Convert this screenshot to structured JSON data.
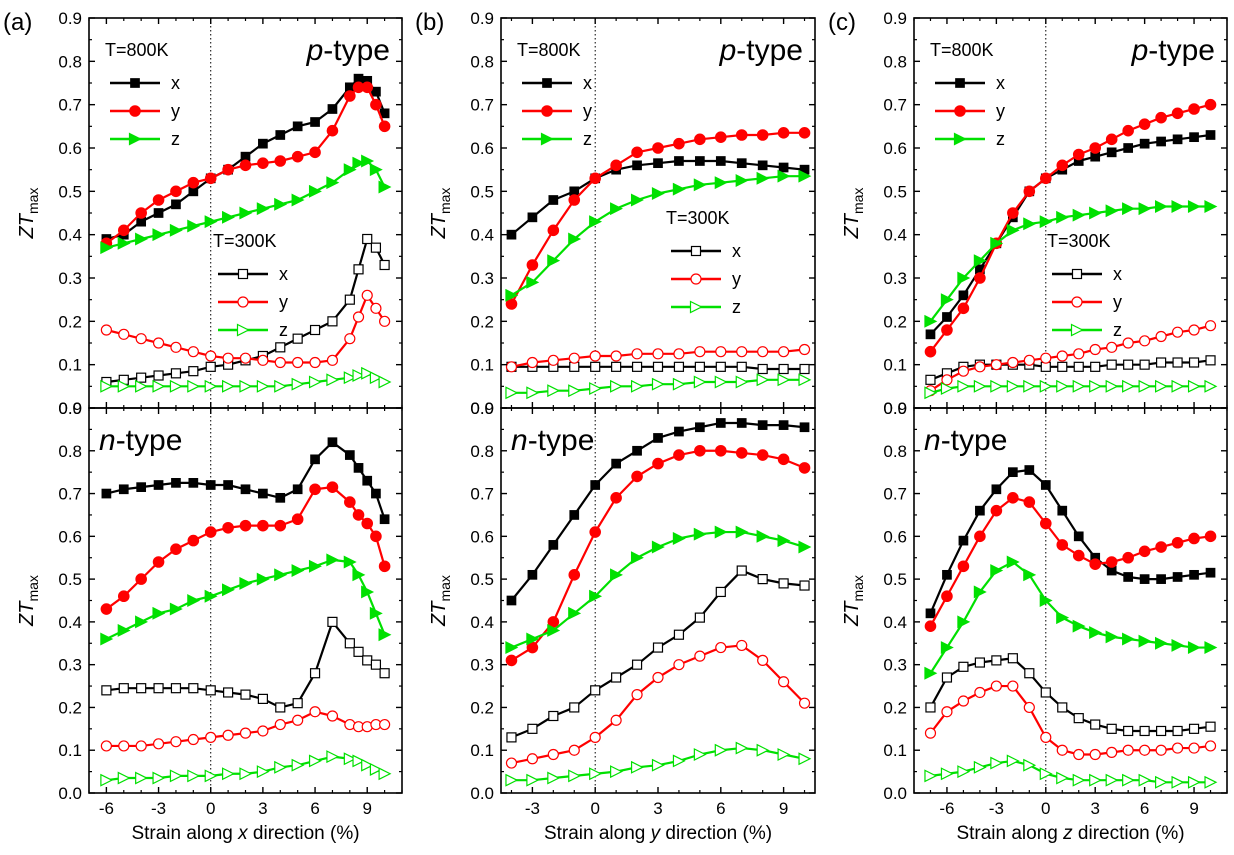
{
  "colors": {
    "x": "#000000",
    "y": "#ff0000",
    "z": "#00e000"
  },
  "common": {
    "ylabel_italic": "ZT",
    "ylabel_sub": "max",
    "ylim": [
      0,
      0.9
    ],
    "yticks": [
      "0.0",
      "0.1",
      "0.2",
      "0.3",
      "0.4",
      "0.5",
      "0.6",
      "0.7",
      "0.8",
      "0.9"
    ],
    "p_type_italic": "p",
    "n_type_italic": "n",
    "type_suffix": "-type",
    "temp_800": "T=800K",
    "temp_300": "T=300K",
    "series_names": [
      "x",
      "y",
      "z"
    ],
    "legend_800_placement": "top-left",
    "legend_300_placement": "middle-right"
  },
  "chart_data": [
    {
      "panel": "(a)",
      "type": "line",
      "xlabel_pre": "Strain along ",
      "xlabel_it": "x",
      "xlabel_post": " direction (%)",
      "xlim": [
        -7,
        11
      ],
      "xticks": [
        -6,
        -3,
        0,
        3,
        6,
        9
      ],
      "x": [
        -6,
        -5,
        -4,
        -3,
        -2,
        -1,
        0,
        1,
        2,
        3,
        4,
        5,
        6,
        7,
        8,
        8.5,
        9,
        9.5,
        10
      ],
      "p_type": {
        "T800": [
          {
            "name": "x",
            "values": [
              0.39,
              0.4,
              0.43,
              0.45,
              0.47,
              0.5,
              0.53,
              0.55,
              0.58,
              0.61,
              0.63,
              0.65,
              0.66,
              0.69,
              0.74,
              0.76,
              0.755,
              0.73,
              0.68
            ]
          },
          {
            "name": "y",
            "values": [
              0.38,
              0.41,
              0.45,
              0.48,
              0.5,
              0.52,
              0.53,
              0.55,
              0.56,
              0.565,
              0.57,
              0.58,
              0.59,
              0.64,
              0.72,
              0.74,
              0.74,
              0.7,
              0.65
            ]
          },
          {
            "name": "z",
            "values": [
              0.37,
              0.38,
              0.39,
              0.4,
              0.41,
              0.42,
              0.43,
              0.44,
              0.45,
              0.46,
              0.47,
              0.48,
              0.5,
              0.52,
              0.55,
              0.565,
              0.57,
              0.55,
              0.51
            ]
          }
        ],
        "T300": [
          {
            "name": "x",
            "values": [
              0.06,
              0.065,
              0.07,
              0.075,
              0.08,
              0.085,
              0.095,
              0.1,
              0.11,
              0.12,
              0.14,
              0.16,
              0.18,
              0.2,
              0.25,
              0.32,
              0.39,
              0.37,
              0.33
            ]
          },
          {
            "name": "y",
            "values": [
              0.18,
              0.17,
              0.16,
              0.15,
              0.14,
              0.13,
              0.12,
              0.115,
              0.115,
              0.11,
              0.105,
              0.105,
              0.105,
              0.11,
              0.16,
              0.21,
              0.26,
              0.23,
              0.2
            ]
          },
          {
            "name": "z",
            "values": [
              0.05,
              0.05,
              0.05,
              0.05,
              0.05,
              0.05,
              0.05,
              0.05,
              0.05,
              0.05,
              0.05,
              0.055,
              0.06,
              0.065,
              0.07,
              0.075,
              0.08,
              0.07,
              0.06
            ]
          }
        ]
      },
      "n_type": [
        {
          "name": "x",
          "values": [
            0.7,
            0.71,
            0.715,
            0.72,
            0.725,
            0.725,
            0.72,
            0.72,
            0.71,
            0.7,
            0.69,
            0.71,
            0.78,
            0.82,
            0.79,
            0.76,
            0.73,
            0.7,
            0.64
          ]
        },
        {
          "name": "y",
          "values": [
            0.43,
            0.46,
            0.5,
            0.54,
            0.57,
            0.59,
            0.61,
            0.62,
            0.625,
            0.625,
            0.625,
            0.64,
            0.71,
            0.715,
            0.68,
            0.65,
            0.63,
            0.6,
            0.53
          ]
        },
        {
          "name": "z",
          "values": [
            0.36,
            0.38,
            0.4,
            0.42,
            0.43,
            0.45,
            0.46,
            0.475,
            0.49,
            0.5,
            0.51,
            0.52,
            0.53,
            0.545,
            0.54,
            0.51,
            0.47,
            0.42,
            0.37
          ]
        },
        {
          "name": "x",
          "values": [
            0.24,
            0.245,
            0.245,
            0.245,
            0.245,
            0.245,
            0.24,
            0.235,
            0.23,
            0.22,
            0.2,
            0.21,
            0.28,
            0.4,
            0.35,
            0.33,
            0.31,
            0.3,
            0.28
          ]
        },
        {
          "name": "y",
          "values": [
            0.11,
            0.11,
            0.11,
            0.115,
            0.12,
            0.125,
            0.13,
            0.135,
            0.14,
            0.145,
            0.16,
            0.17,
            0.19,
            0.18,
            0.16,
            0.155,
            0.155,
            0.16,
            0.16
          ]
        },
        {
          "name": "z",
          "values": [
            0.03,
            0.035,
            0.035,
            0.035,
            0.04,
            0.04,
            0.04,
            0.045,
            0.045,
            0.05,
            0.06,
            0.065,
            0.075,
            0.085,
            0.08,
            0.075,
            0.065,
            0.055,
            0.045
          ]
        }
      ]
    },
    {
      "panel": "(b)",
      "type": "line",
      "xlabel_pre": "Strain along ",
      "xlabel_it": "y",
      "xlabel_post": " direction (%)",
      "xlim": [
        -4.5,
        10.5
      ],
      "xticks": [
        -3,
        0,
        3,
        6,
        9
      ],
      "x": [
        -4,
        -3,
        -2,
        -1,
        0,
        1,
        2,
        3,
        4,
        5,
        6,
        7,
        8,
        9,
        10
      ],
      "p_type": {
        "T800": [
          {
            "name": "x",
            "values": [
              0.4,
              0.44,
              0.48,
              0.5,
              0.53,
              0.55,
              0.56,
              0.565,
              0.57,
              0.57,
              0.57,
              0.565,
              0.56,
              0.555,
              0.55
            ]
          },
          {
            "name": "y",
            "values": [
              0.24,
              0.33,
              0.41,
              0.48,
              0.53,
              0.56,
              0.59,
              0.6,
              0.61,
              0.62,
              0.625,
              0.63,
              0.63,
              0.635,
              0.635
            ]
          },
          {
            "name": "z",
            "values": [
              0.26,
              0.29,
              0.34,
              0.39,
              0.43,
              0.46,
              0.48,
              0.495,
              0.505,
              0.515,
              0.52,
              0.525,
              0.53,
              0.535,
              0.535
            ]
          }
        ],
        "T300": [
          {
            "name": "x",
            "values": [
              0.095,
              0.095,
              0.095,
              0.095,
              0.095,
              0.095,
              0.095,
              0.095,
              0.095,
              0.095,
              0.095,
              0.095,
              0.09,
              0.09,
              0.09
            ]
          },
          {
            "name": "y",
            "values": [
              0.095,
              0.105,
              0.11,
              0.115,
              0.12,
              0.12,
              0.125,
              0.125,
              0.125,
              0.13,
              0.13,
              0.13,
              0.13,
              0.13,
              0.135
            ]
          },
          {
            "name": "z",
            "values": [
              0.035,
              0.035,
              0.04,
              0.04,
              0.045,
              0.05,
              0.05,
              0.055,
              0.055,
              0.06,
              0.06,
              0.06,
              0.065,
              0.065,
              0.065
            ]
          }
        ]
      },
      "n_type": [
        {
          "name": "x",
          "values": [
            0.45,
            0.51,
            0.58,
            0.65,
            0.72,
            0.77,
            0.8,
            0.83,
            0.845,
            0.855,
            0.865,
            0.865,
            0.86,
            0.86,
            0.855
          ]
        },
        {
          "name": "y",
          "values": [
            0.31,
            0.34,
            0.4,
            0.51,
            0.61,
            0.69,
            0.74,
            0.77,
            0.79,
            0.8,
            0.8,
            0.795,
            0.79,
            0.78,
            0.76
          ]
        },
        {
          "name": "z",
          "values": [
            0.34,
            0.36,
            0.38,
            0.42,
            0.46,
            0.51,
            0.55,
            0.575,
            0.595,
            0.605,
            0.61,
            0.61,
            0.6,
            0.59,
            0.575
          ]
        },
        {
          "name": "x",
          "values": [
            0.13,
            0.15,
            0.18,
            0.2,
            0.24,
            0.27,
            0.3,
            0.34,
            0.37,
            0.41,
            0.47,
            0.52,
            0.5,
            0.49,
            0.485
          ]
        },
        {
          "name": "y",
          "values": [
            0.07,
            0.08,
            0.09,
            0.1,
            0.13,
            0.17,
            0.23,
            0.27,
            0.3,
            0.32,
            0.34,
            0.345,
            0.31,
            0.26,
            0.21
          ]
        },
        {
          "name": "z",
          "values": [
            0.03,
            0.03,
            0.035,
            0.04,
            0.045,
            0.05,
            0.06,
            0.065,
            0.075,
            0.09,
            0.1,
            0.105,
            0.1,
            0.09,
            0.08
          ]
        }
      ]
    },
    {
      "panel": "(c)",
      "type": "line",
      "xlabel_pre": "Strain along ",
      "xlabel_it": "z",
      "xlabel_post": " direction (%)",
      "xlim": [
        -8,
        11
      ],
      "xticks": [
        -6,
        -3,
        0,
        3,
        6,
        9
      ],
      "x": [
        -7,
        -6,
        -5,
        -4,
        -3,
        -2,
        -1,
        0,
        1,
        2,
        3,
        4,
        5,
        6,
        7,
        8,
        9,
        10
      ],
      "p_type": {
        "T800": [
          {
            "name": "x",
            "values": [
              0.17,
              0.21,
              0.26,
              0.32,
              0.38,
              0.44,
              0.5,
              0.53,
              0.55,
              0.57,
              0.58,
              0.59,
              0.6,
              0.61,
              0.615,
              0.62,
              0.625,
              0.63
            ]
          },
          {
            "name": "y",
            "values": [
              0.13,
              0.18,
              0.23,
              0.3,
              0.38,
              0.45,
              0.5,
              0.53,
              0.56,
              0.585,
              0.6,
              0.62,
              0.64,
              0.655,
              0.67,
              0.68,
              0.69,
              0.7
            ]
          },
          {
            "name": "z",
            "values": [
              0.2,
              0.25,
              0.3,
              0.34,
              0.38,
              0.41,
              0.425,
              0.43,
              0.44,
              0.445,
              0.45,
              0.455,
              0.46,
              0.46,
              0.465,
              0.465,
              0.465,
              0.465
            ]
          }
        ],
        "T300": [
          {
            "name": "x",
            "values": [
              0.065,
              0.08,
              0.095,
              0.1,
              0.1,
              0.1,
              0.1,
              0.095,
              0.095,
              0.095,
              0.095,
              0.1,
              0.1,
              0.1,
              0.105,
              0.105,
              0.105,
              0.11
            ]
          },
          {
            "name": "y",
            "values": [
              0.04,
              0.065,
              0.085,
              0.095,
              0.1,
              0.105,
              0.11,
              0.115,
              0.12,
              0.125,
              0.135,
              0.14,
              0.15,
              0.155,
              0.165,
              0.175,
              0.18,
              0.19
            ]
          },
          {
            "name": "z",
            "values": [
              0.035,
              0.045,
              0.05,
              0.05,
              0.05,
              0.05,
              0.05,
              0.05,
              0.05,
              0.05,
              0.05,
              0.05,
              0.05,
              0.05,
              0.05,
              0.05,
              0.05,
              0.05
            ]
          }
        ]
      },
      "n_type": [
        {
          "name": "x",
          "values": [
            0.42,
            0.51,
            0.59,
            0.66,
            0.71,
            0.75,
            0.755,
            0.72,
            0.66,
            0.6,
            0.55,
            0.52,
            0.505,
            0.5,
            0.5,
            0.505,
            0.51,
            0.515
          ]
        },
        {
          "name": "y",
          "values": [
            0.39,
            0.46,
            0.53,
            0.6,
            0.66,
            0.69,
            0.68,
            0.63,
            0.58,
            0.555,
            0.535,
            0.54,
            0.55,
            0.565,
            0.575,
            0.585,
            0.595,
            0.6
          ]
        },
        {
          "name": "z",
          "values": [
            0.28,
            0.34,
            0.4,
            0.47,
            0.52,
            0.54,
            0.51,
            0.45,
            0.41,
            0.39,
            0.375,
            0.365,
            0.36,
            0.355,
            0.35,
            0.345,
            0.34,
            0.34
          ]
        },
        {
          "name": "x",
          "values": [
            0.2,
            0.27,
            0.295,
            0.305,
            0.31,
            0.315,
            0.28,
            0.235,
            0.2,
            0.175,
            0.16,
            0.15,
            0.145,
            0.145,
            0.145,
            0.145,
            0.15,
            0.155
          ]
        },
        {
          "name": "y",
          "values": [
            0.14,
            0.19,
            0.215,
            0.235,
            0.25,
            0.25,
            0.2,
            0.13,
            0.1,
            0.09,
            0.09,
            0.095,
            0.1,
            0.1,
            0.1,
            0.105,
            0.105,
            0.11
          ]
        },
        {
          "name": "z",
          "values": [
            0.04,
            0.045,
            0.05,
            0.06,
            0.07,
            0.075,
            0.065,
            0.045,
            0.035,
            0.03,
            0.03,
            0.03,
            0.03,
            0.03,
            0.025,
            0.025,
            0.025,
            0.025
          ]
        }
      ]
    }
  ]
}
